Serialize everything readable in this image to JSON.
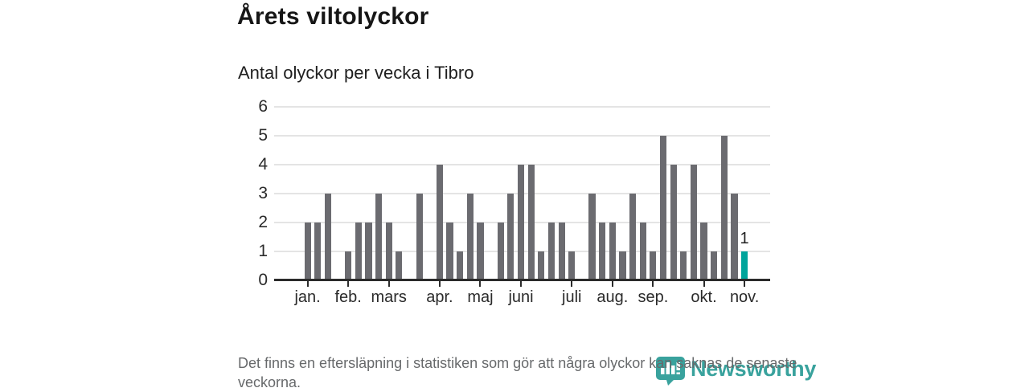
{
  "header": {
    "title": "Årets viltolyckor",
    "subtitle": "Antal olyckor per vecka i Tibro"
  },
  "chart_data": {
    "type": "bar",
    "title": "Årets viltolyckor",
    "subtitle": "Antal olyckor per vecka i Tibro",
    "x_unit": "vecka",
    "values": [
      2,
      2,
      3,
      0,
      1,
      2,
      2,
      3,
      2,
      1,
      0,
      3,
      0,
      4,
      2,
      1,
      3,
      2,
      0,
      2,
      3,
      4,
      4,
      1,
      2,
      2,
      1,
      0,
      3,
      2,
      2,
      1,
      3,
      2,
      1,
      5,
      4,
      1,
      4,
      2,
      1,
      5,
      3,
      1
    ],
    "highlight_index": 43,
    "highlight_value_label": "1",
    "ylim": [
      0,
      6
    ],
    "y_ticks": [
      0,
      1,
      2,
      3,
      4,
      5,
      6
    ],
    "grid": true,
    "x_ticks": [
      {
        "label": "jan.",
        "week_index": 0
      },
      {
        "label": "feb.",
        "week_index": 4
      },
      {
        "label": "mars",
        "week_index": 8
      },
      {
        "label": "apr.",
        "week_index": 13
      },
      {
        "label": "maj",
        "week_index": 17
      },
      {
        "label": "juni",
        "week_index": 21
      },
      {
        "label": "juli",
        "week_index": 26
      },
      {
        "label": "aug.",
        "week_index": 30
      },
      {
        "label": "sep.",
        "week_index": 34
      },
      {
        "label": "okt.",
        "week_index": 39
      },
      {
        "label": "nov.",
        "week_index": 43
      }
    ],
    "colors": {
      "bar": "#6b6b70",
      "highlight": "#00a49b",
      "grid": "#e4e4e4",
      "axis": "#2b2b2b",
      "tick_label": "#2b2b2b"
    }
  },
  "footer": {
    "note": "Det finns en eftersläpning i statistiken som gör att några olyckor kan saknas de senaste veckorna."
  },
  "logo": {
    "text": "Newsworthy",
    "color": "#2f9e98"
  }
}
